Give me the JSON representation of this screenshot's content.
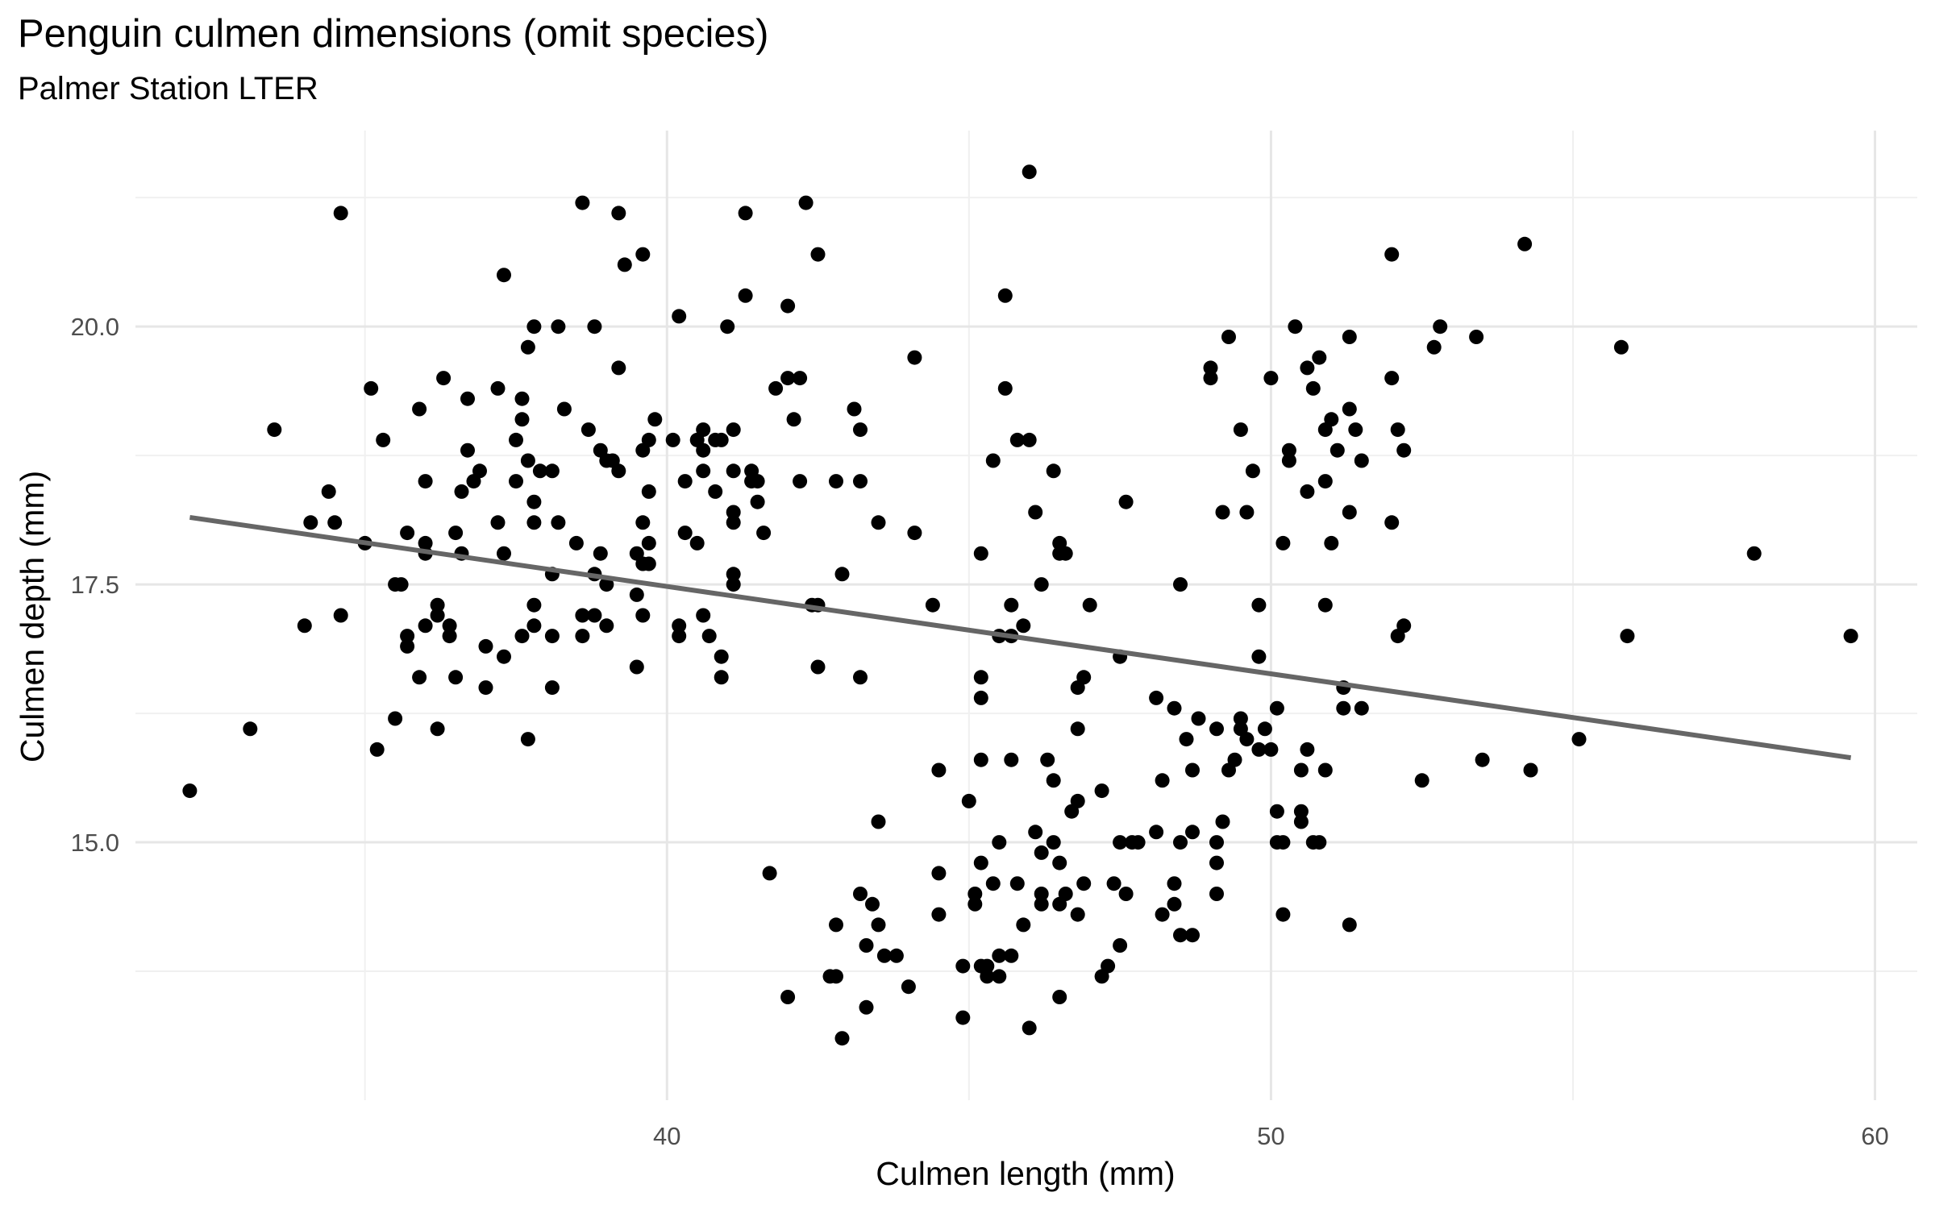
{
  "chart_data": {
    "type": "scatter",
    "title": "Penguin culmen dimensions (omit species)",
    "subtitle": "Palmer Station LTER",
    "xlabel": "Culmen length (mm)",
    "ylabel": "Culmen depth (mm)",
    "xlim": [
      31.2,
      60.7
    ],
    "ylim": [
      12.5,
      21.9
    ],
    "x_ticks": [
      40,
      50,
      60
    ],
    "x_tick_labels": [
      "40",
      "50",
      "60"
    ],
    "x_minor_ticks": [
      35,
      45,
      55
    ],
    "y_ticks": [
      15.0,
      17.5,
      20.0
    ],
    "y_tick_labels": [
      "15.0",
      "17.5",
      "20.0"
    ],
    "y_minor_ticks": [
      13.75,
      16.25,
      18.75,
      21.25
    ],
    "grid": true,
    "legend": "none",
    "point_color": "#000000",
    "trend_color": "#666666",
    "trend_line": {
      "x": [
        32.1,
        59.6
      ],
      "y": [
        18.15,
        15.82
      ]
    },
    "points": [
      [
        32.1,
        15.5
      ],
      [
        33.1,
        16.1
      ],
      [
        33.5,
        19.0
      ],
      [
        34.0,
        17.1
      ],
      [
        34.1,
        18.1
      ],
      [
        34.4,
        18.4
      ],
      [
        34.5,
        18.1
      ],
      [
        34.6,
        21.1
      ],
      [
        34.6,
        17.2
      ],
      [
        35.0,
        17.9
      ],
      [
        35.1,
        19.4
      ],
      [
        35.2,
        15.9
      ],
      [
        35.3,
        18.9
      ],
      [
        35.5,
        17.5
      ],
      [
        35.5,
        16.2
      ],
      [
        35.6,
        17.5
      ],
      [
        35.7,
        16.9
      ],
      [
        35.7,
        17.0
      ],
      [
        35.7,
        18.0
      ],
      [
        35.9,
        19.2
      ],
      [
        35.9,
        16.6
      ],
      [
        36.0,
        17.8
      ],
      [
        36.0,
        18.5
      ],
      [
        36.0,
        17.9
      ],
      [
        36.0,
        17.1
      ],
      [
        36.2,
        16.1
      ],
      [
        36.2,
        17.2
      ],
      [
        36.2,
        17.3
      ],
      [
        36.3,
        19.5
      ],
      [
        36.4,
        17.1
      ],
      [
        36.4,
        17.0
      ],
      [
        36.5,
        18.0
      ],
      [
        36.5,
        16.6
      ],
      [
        36.6,
        17.8
      ],
      [
        36.6,
        18.4
      ],
      [
        36.7,
        18.8
      ],
      [
        36.7,
        19.3
      ],
      [
        36.8,
        18.5
      ],
      [
        36.9,
        18.6
      ],
      [
        37.0,
        16.9
      ],
      [
        37.0,
        16.5
      ],
      [
        37.2,
        18.1
      ],
      [
        37.2,
        19.4
      ],
      [
        37.3,
        17.8
      ],
      [
        37.3,
        16.8
      ],
      [
        37.3,
        20.5
      ],
      [
        37.5,
        18.9
      ],
      [
        37.5,
        18.5
      ],
      [
        37.6,
        19.1
      ],
      [
        37.6,
        19.3
      ],
      [
        37.6,
        17.0
      ],
      [
        37.7,
        18.7
      ],
      [
        37.7,
        19.8
      ],
      [
        37.7,
        16.0
      ],
      [
        37.8,
        18.3
      ],
      [
        37.8,
        20.0
      ],
      [
        37.8,
        18.1
      ],
      [
        37.8,
        17.1
      ],
      [
        37.8,
        17.3
      ],
      [
        37.9,
        18.6
      ],
      [
        38.1,
        18.6
      ],
      [
        38.1,
        17.0
      ],
      [
        38.1,
        16.5
      ],
      [
        38.1,
        17.6
      ],
      [
        38.2,
        18.1
      ],
      [
        38.2,
        20.0
      ],
      [
        38.3,
        19.2
      ],
      [
        38.5,
        17.9
      ],
      [
        38.6,
        21.2
      ],
      [
        38.6,
        17.2
      ],
      [
        38.6,
        17.0
      ],
      [
        38.7,
        19.0
      ],
      [
        38.8,
        17.6
      ],
      [
        38.8,
        17.2
      ],
      [
        38.8,
        20.0
      ],
      [
        38.9,
        18.8
      ],
      [
        38.9,
        17.8
      ],
      [
        39.0,
        18.7
      ],
      [
        39.0,
        17.5
      ],
      [
        39.0,
        17.1
      ],
      [
        39.1,
        18.7
      ],
      [
        39.2,
        21.1
      ],
      [
        39.2,
        19.6
      ],
      [
        39.2,
        18.6
      ],
      [
        39.3,
        20.6
      ],
      [
        39.5,
        17.4
      ],
      [
        39.5,
        16.7
      ],
      [
        39.5,
        17.8
      ],
      [
        39.6,
        18.8
      ],
      [
        39.6,
        17.7
      ],
      [
        39.6,
        18.1
      ],
      [
        39.6,
        17.2
      ],
      [
        39.6,
        20.7
      ],
      [
        39.7,
        18.4
      ],
      [
        39.7,
        17.9
      ],
      [
        39.7,
        17.7
      ],
      [
        39.7,
        18.9
      ],
      [
        39.8,
        19.1
      ],
      [
        40.1,
        18.9
      ],
      [
        40.2,
        20.1
      ],
      [
        40.2,
        17.0
      ],
      [
        40.2,
        17.1
      ],
      [
        40.3,
        18.0
      ],
      [
        40.3,
        18.5
      ],
      [
        40.5,
        17.9
      ],
      [
        40.5,
        18.9
      ],
      [
        40.6,
        18.8
      ],
      [
        40.6,
        19.0
      ],
      [
        40.6,
        17.2
      ],
      [
        40.6,
        18.6
      ],
      [
        40.7,
        17.0
      ],
      [
        40.8,
        18.4
      ],
      [
        40.8,
        18.9
      ],
      [
        40.9,
        16.8
      ],
      [
        40.9,
        16.6
      ],
      [
        40.9,
        18.9
      ],
      [
        41.0,
        20.0
      ],
      [
        41.1,
        19.0
      ],
      [
        41.1,
        18.2
      ],
      [
        41.1,
        17.6
      ],
      [
        41.1,
        18.6
      ],
      [
        41.1,
        17.5
      ],
      [
        41.1,
        18.1
      ],
      [
        41.3,
        20.3
      ],
      [
        41.3,
        21.1
      ],
      [
        41.4,
        18.6
      ],
      [
        41.4,
        18.5
      ],
      [
        41.5,
        18.3
      ],
      [
        41.5,
        18.5
      ],
      [
        41.6,
        18.0
      ],
      [
        41.7,
        14.7
      ],
      [
        41.8,
        19.4
      ],
      [
        42.0,
        19.5
      ],
      [
        42.0,
        20.2
      ],
      [
        42.0,
        13.5
      ],
      [
        42.1,
        19.1
      ],
      [
        42.2,
        18.5
      ],
      [
        42.2,
        19.5
      ],
      [
        42.3,
        21.2
      ],
      [
        42.4,
        17.3
      ],
      [
        42.5,
        17.3
      ],
      [
        42.5,
        16.7
      ],
      [
        42.5,
        20.7
      ],
      [
        42.7,
        13.7
      ],
      [
        42.8,
        18.5
      ],
      [
        42.8,
        14.2
      ],
      [
        42.8,
        13.7
      ],
      [
        42.9,
        17.6
      ],
      [
        42.9,
        13.1
      ],
      [
        43.2,
        19.0
      ],
      [
        43.2,
        16.6
      ],
      [
        43.2,
        18.5
      ],
      [
        43.1,
        19.2
      ],
      [
        43.2,
        14.5
      ],
      [
        43.3,
        13.4
      ],
      [
        43.3,
        14.0
      ],
      [
        43.4,
        14.4
      ],
      [
        43.5,
        18.1
      ],
      [
        43.5,
        15.2
      ],
      [
        43.5,
        14.2
      ],
      [
        43.6,
        13.9
      ],
      [
        43.8,
        13.9
      ],
      [
        44.0,
        13.6
      ],
      [
        44.1,
        18.0
      ],
      [
        44.1,
        19.7
      ],
      [
        44.4,
        17.3
      ],
      [
        44.5,
        15.7
      ],
      [
        44.5,
        14.7
      ],
      [
        44.5,
        14.3
      ],
      [
        44.9,
        13.3
      ],
      [
        44.9,
        13.8
      ],
      [
        45.0,
        15.4
      ],
      [
        45.1,
        14.5
      ],
      [
        45.1,
        14.4
      ],
      [
        45.2,
        17.8
      ],
      [
        45.2,
        16.4
      ],
      [
        45.2,
        16.6
      ],
      [
        45.2,
        15.8
      ],
      [
        45.2,
        14.8
      ],
      [
        45.2,
        13.8
      ],
      [
        45.3,
        13.8
      ],
      [
        45.3,
        13.7
      ],
      [
        45.4,
        18.7
      ],
      [
        45.4,
        14.6
      ],
      [
        45.5,
        13.7
      ],
      [
        45.5,
        15.0
      ],
      [
        45.5,
        17.0
      ],
      [
        45.5,
        13.9
      ],
      [
        45.6,
        20.3
      ],
      [
        45.6,
        19.4
      ],
      [
        45.7,
        13.9
      ],
      [
        45.7,
        17.3
      ],
      [
        45.7,
        15.8
      ],
      [
        45.7,
        17.0
      ],
      [
        45.8,
        18.9
      ],
      [
        45.8,
        14.6
      ],
      [
        45.9,
        17.1
      ],
      [
        45.9,
        14.2
      ],
      [
        46.1,
        15.1
      ],
      [
        46.1,
        18.2
      ],
      [
        46.2,
        17.5
      ],
      [
        46.2,
        14.5
      ],
      [
        46.2,
        14.4
      ],
      [
        46.2,
        14.9
      ],
      [
        46.3,
        15.8
      ],
      [
        46.4,
        18.6
      ],
      [
        46.4,
        15.6
      ],
      [
        46.4,
        15.0
      ],
      [
        46.5,
        17.9
      ],
      [
        46.5,
        14.4
      ],
      [
        46.5,
        14.8
      ],
      [
        46.5,
        13.5
      ],
      [
        46.5,
        17.8
      ],
      [
        46.6,
        14.5
      ],
      [
        46.6,
        17.8
      ],
      [
        46.7,
        15.3
      ],
      [
        46.8,
        14.3
      ],
      [
        46.8,
        15.4
      ],
      [
        46.8,
        16.1
      ],
      [
        46.8,
        16.5
      ],
      [
        46.9,
        14.6
      ],
      [
        46.9,
        16.6
      ],
      [
        46.0,
        21.5
      ],
      [
        46.0,
        18.9
      ],
      [
        46.0,
        13.2
      ],
      [
        47.0,
        17.3
      ],
      [
        47.2,
        15.5
      ],
      [
        47.2,
        13.7
      ],
      [
        47.3,
        13.8
      ],
      [
        47.4,
        14.6
      ],
      [
        47.5,
        15.0
      ],
      [
        47.5,
        14.0
      ],
      [
        47.5,
        16.8
      ],
      [
        47.6,
        14.5
      ],
      [
        47.6,
        18.3
      ],
      [
        47.7,
        15.0
      ],
      [
        47.8,
        15.0
      ],
      [
        48.1,
        15.1
      ],
      [
        48.1,
        16.4
      ],
      [
        48.2,
        14.3
      ],
      [
        48.2,
        15.6
      ],
      [
        48.4,
        14.6
      ],
      [
        48.4,
        16.3
      ],
      [
        48.4,
        14.4
      ],
      [
        48.5,
        14.1
      ],
      [
        48.5,
        15.0
      ],
      [
        48.5,
        17.5
      ],
      [
        48.6,
        16.0
      ],
      [
        48.7,
        14.1
      ],
      [
        48.7,
        15.1
      ],
      [
        48.7,
        15.7
      ],
      [
        48.8,
        16.2
      ],
      [
        49.0,
        19.5
      ],
      [
        49.0,
        19.6
      ],
      [
        49.1,
        14.8
      ],
      [
        49.1,
        14.5
      ],
      [
        49.1,
        15.0
      ],
      [
        49.1,
        16.1
      ],
      [
        49.2,
        18.2
      ],
      [
        49.2,
        15.2
      ],
      [
        49.3,
        19.9
      ],
      [
        49.3,
        15.7
      ],
      [
        49.4,
        15.8
      ],
      [
        49.5,
        19.0
      ],
      [
        49.5,
        16.2
      ],
      [
        49.5,
        16.1
      ],
      [
        49.6,
        18.2
      ],
      [
        49.6,
        16.0
      ],
      [
        49.7,
        18.6
      ],
      [
        49.8,
        17.3
      ],
      [
        49.8,
        16.8
      ],
      [
        49.8,
        15.9
      ],
      [
        49.9,
        16.1
      ],
      [
        50.0,
        15.9
      ],
      [
        50.0,
        19.5
      ],
      [
        50.1,
        15.0
      ],
      [
        50.1,
        15.3
      ],
      [
        50.1,
        16.3
      ],
      [
        50.2,
        17.9
      ],
      [
        50.2,
        15.0
      ],
      [
        50.2,
        14.3
      ],
      [
        50.3,
        18.7
      ],
      [
        50.3,
        18.8
      ],
      [
        50.4,
        20.0
      ],
      [
        50.5,
        15.7
      ],
      [
        50.5,
        15.3
      ],
      [
        50.5,
        15.2
      ],
      [
        50.6,
        19.6
      ],
      [
        50.6,
        18.4
      ],
      [
        50.6,
        15.9
      ],
      [
        50.7,
        19.4
      ],
      [
        50.7,
        15.0
      ],
      [
        50.8,
        19.7
      ],
      [
        50.8,
        15.0
      ],
      [
        50.9,
        19.0
      ],
      [
        50.9,
        18.5
      ],
      [
        50.9,
        17.3
      ],
      [
        50.9,
        15.7
      ],
      [
        51.0,
        19.1
      ],
      [
        51.0,
        17.9
      ],
      [
        51.1,
        18.8
      ],
      [
        51.2,
        16.5
      ],
      [
        51.2,
        16.3
      ],
      [
        51.3,
        19.9
      ],
      [
        51.3,
        19.2
      ],
      [
        51.3,
        18.2
      ],
      [
        51.3,
        14.2
      ],
      [
        51.4,
        19.0
      ],
      [
        51.5,
        18.7
      ],
      [
        51.5,
        16.3
      ],
      [
        52.0,
        19.5
      ],
      [
        52.0,
        18.1
      ],
      [
        52.0,
        20.7
      ],
      [
        52.1,
        19.0
      ],
      [
        52.1,
        17.0
      ],
      [
        52.2,
        18.8
      ],
      [
        52.2,
        17.1
      ],
      [
        52.5,
        15.6
      ],
      [
        52.7,
        19.8
      ],
      [
        52.8,
        20.0
      ],
      [
        53.4,
        19.9
      ],
      [
        53.5,
        15.8
      ],
      [
        54.2,
        20.8
      ],
      [
        54.3,
        15.7
      ],
      [
        55.1,
        16.0
      ],
      [
        55.8,
        19.8
      ],
      [
        55.9,
        17.0
      ],
      [
        58.0,
        17.8
      ],
      [
        59.6,
        17.0
      ]
    ]
  }
}
